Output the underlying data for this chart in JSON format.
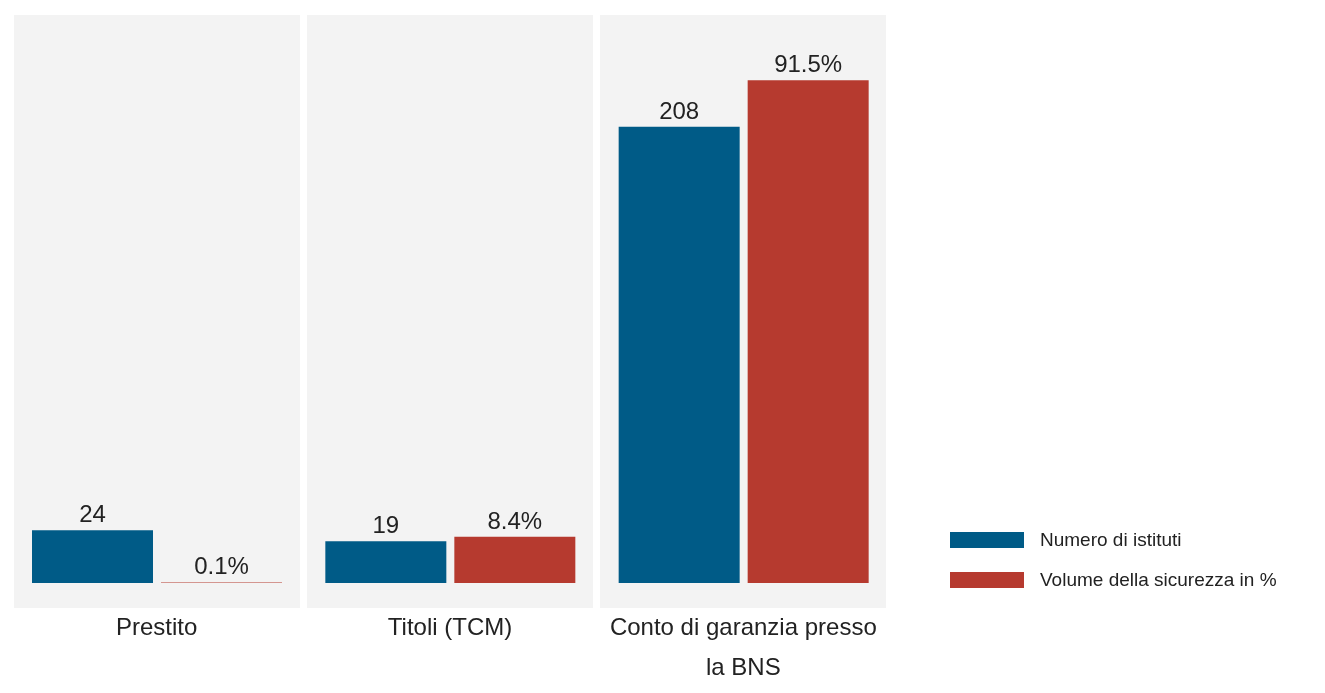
{
  "chart_data": {
    "type": "bar",
    "categories": [
      "Prestito",
      "Titoli (TCM)",
      "Conto di garanzia presso la BNS"
    ],
    "series": [
      {
        "name": "Numero di istituti",
        "color": "#005b87",
        "values": [
          24,
          19,
          208
        ],
        "value_labels": [
          "24",
          "19",
          "208"
        ]
      },
      {
        "name": "Volume della sicurezza in %",
        "color": "#b63a2f",
        "values": [
          0.1,
          8.4,
          91.5
        ],
        "value_labels": [
          "0.1%",
          "8.4%",
          "91.5%"
        ],
        "axis": "y2"
      }
    ],
    "legend": "right",
    "grid": false
  }
}
